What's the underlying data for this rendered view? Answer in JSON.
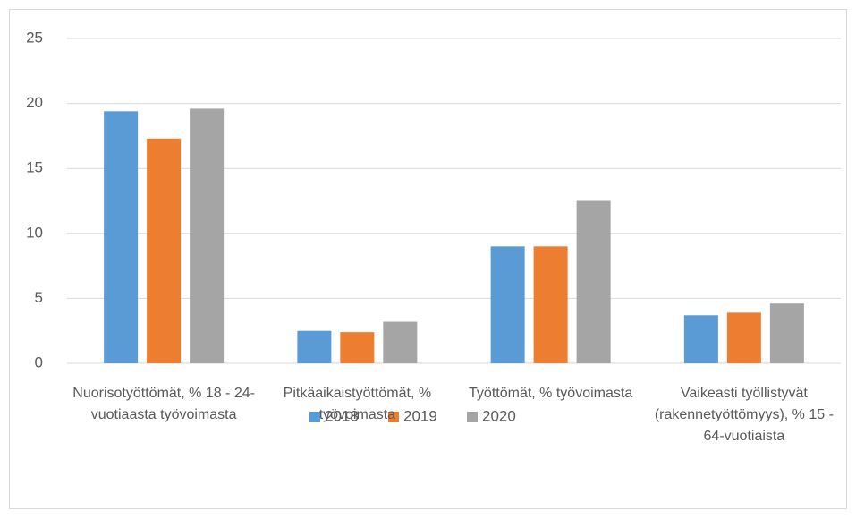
{
  "chart_data": {
    "type": "bar",
    "categories": [
      "Nuorisotyöttömät, % 18 - 24-vuotiaasta työvoimasta",
      "Pitkäaikaistyöttömät, % työvoimasta",
      "Työttömät, % työvoimasta",
      "Vaikeasti työllistyvät (rakennetyöttömyys), % 15 - 64-vuotiaista"
    ],
    "series": [
      {
        "name": "2018",
        "color": "#5b9bd5",
        "values": [
          19.4,
          2.5,
          9.0,
          3.7
        ]
      },
      {
        "name": "2019",
        "color": "#ed7d31",
        "values": [
          17.3,
          2.4,
          9.0,
          3.9
        ]
      },
      {
        "name": "2020",
        "color": "#a5a5a5",
        "values": [
          19.6,
          3.2,
          12.5,
          4.6
        ]
      }
    ],
    "ylim": [
      0,
      25
    ],
    "yticks": [
      0,
      5,
      10,
      15,
      20,
      25
    ],
    "grid": true,
    "legend": "bottom"
  }
}
